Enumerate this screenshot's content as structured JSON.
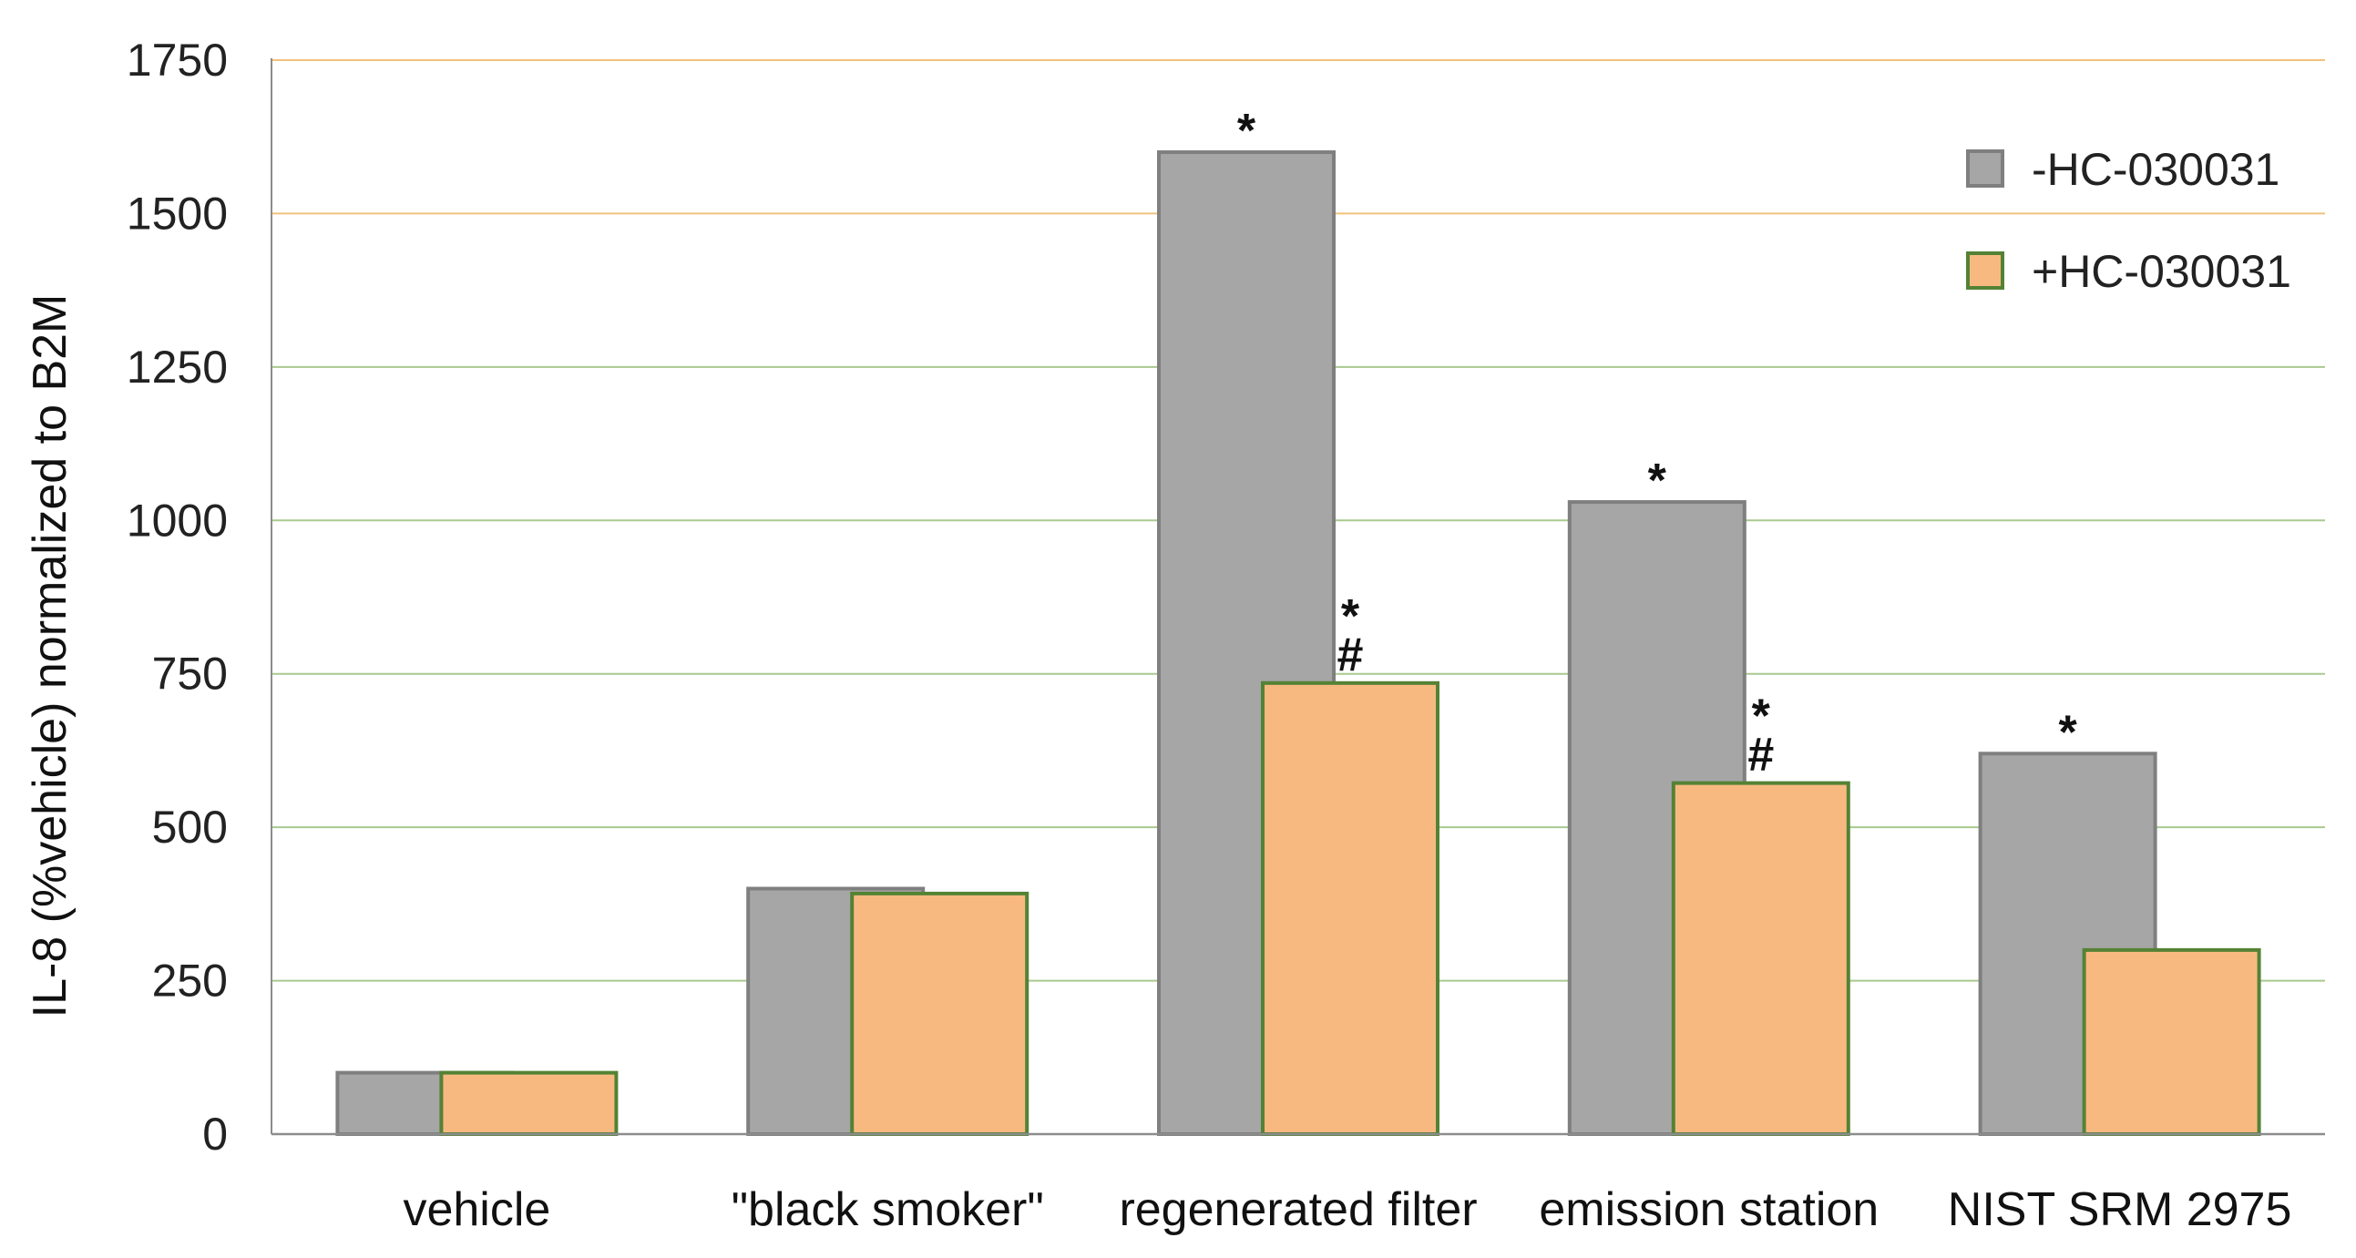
{
  "chart_data": {
    "type": "bar",
    "title": "",
    "xlabel": "",
    "ylabel": "IL-8 (%vehicle) normalized to B2M",
    "ylim": [
      0,
      1750
    ],
    "yticks": [
      0,
      250,
      500,
      750,
      1000,
      1250,
      1500,
      1750
    ],
    "grid": true,
    "legend_position": "top-right",
    "categories": [
      "vehicle",
      "\"black smoker\"",
      "regenerated filter",
      "emission station",
      "NIST SRM 2975"
    ],
    "series": [
      {
        "name": "-HC-030031",
        "values": [
          100,
          400,
          1600,
          1030,
          620
        ],
        "fill": "#a6a6a6",
        "stroke": "#7f7f7f"
      },
      {
        "name": "+HC-030031",
        "values": [
          100,
          392,
          735,
          572,
          300
        ],
        "fill": "#f8b981",
        "stroke": "#548235"
      }
    ],
    "annotations": [
      {
        "category": 2,
        "series": 0,
        "lines": [
          "*"
        ]
      },
      {
        "category": 2,
        "series": 1,
        "lines": [
          "*",
          "#"
        ]
      },
      {
        "category": 3,
        "series": 0,
        "lines": [
          "*"
        ]
      },
      {
        "category": 3,
        "series": 1,
        "lines": [
          "*",
          "#"
        ]
      },
      {
        "category": 4,
        "series": 0,
        "lines": [
          "*"
        ]
      }
    ],
    "colors": {
      "grid_top": "#f2c27c",
      "grid": "#a9c98f",
      "axis": "#8c8c8c"
    }
  }
}
